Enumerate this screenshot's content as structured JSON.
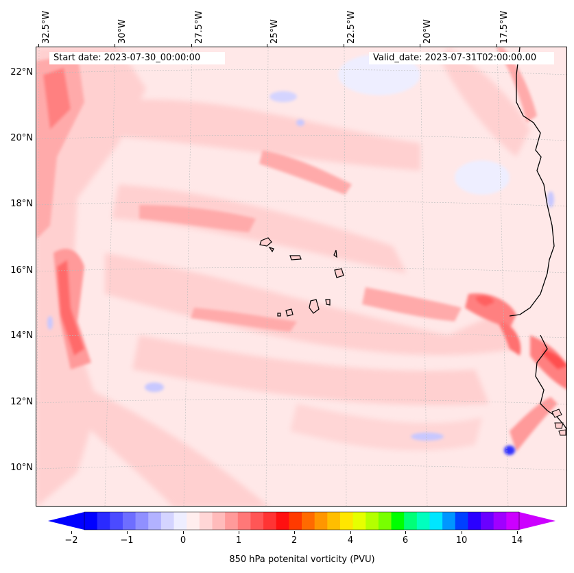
{
  "map": {
    "start_date": "Start date: 2023-07-30_00:00:00",
    "valid_date": "Valid_date: 2023-07-31T02:00:00.00",
    "longitude_labels": [
      "32.5°W",
      "30°W",
      "27.5°W",
      "25°W",
      "22.5°W",
      "20°W",
      "17.5°W"
    ],
    "latitude_labels": [
      "22°N",
      "20°N",
      "18°N",
      "16°N",
      "14°N",
      "12°N",
      "10°N"
    ],
    "background_color": "#ffe8e8",
    "coastline_color": "#000000"
  },
  "colorbar": {
    "title": "850 hPa potenital vorticity (PVU)",
    "tick_labels": [
      "−2",
      "−1",
      "0",
      "1",
      "2",
      "4",
      "6",
      "10",
      "14"
    ],
    "colors": [
      "#0000ff",
      "#2a2aff",
      "#4b4bff",
      "#6e6eff",
      "#9090ff",
      "#b2b2ff",
      "#d4d4ff",
      "#eeeeff",
      "#ffeeee",
      "#ffd6d6",
      "#ffbbbb",
      "#ff9a9a",
      "#ff7878",
      "#ff5656",
      "#ff3434",
      "#ff1010",
      "#ff3a00",
      "#ff6a00",
      "#ff9600",
      "#ffbe00",
      "#ffe600",
      "#e6ff00",
      "#b4ff00",
      "#78ff00",
      "#00ff00",
      "#00ff78",
      "#00ffbe",
      "#00e6ff",
      "#0096ff",
      "#0040ff",
      "#2a00ff",
      "#6a00ff",
      "#a000ff",
      "#cc00ff"
    ],
    "extend_low_color": "#0000ff",
    "extend_high_color": "#cc00ff"
  }
}
